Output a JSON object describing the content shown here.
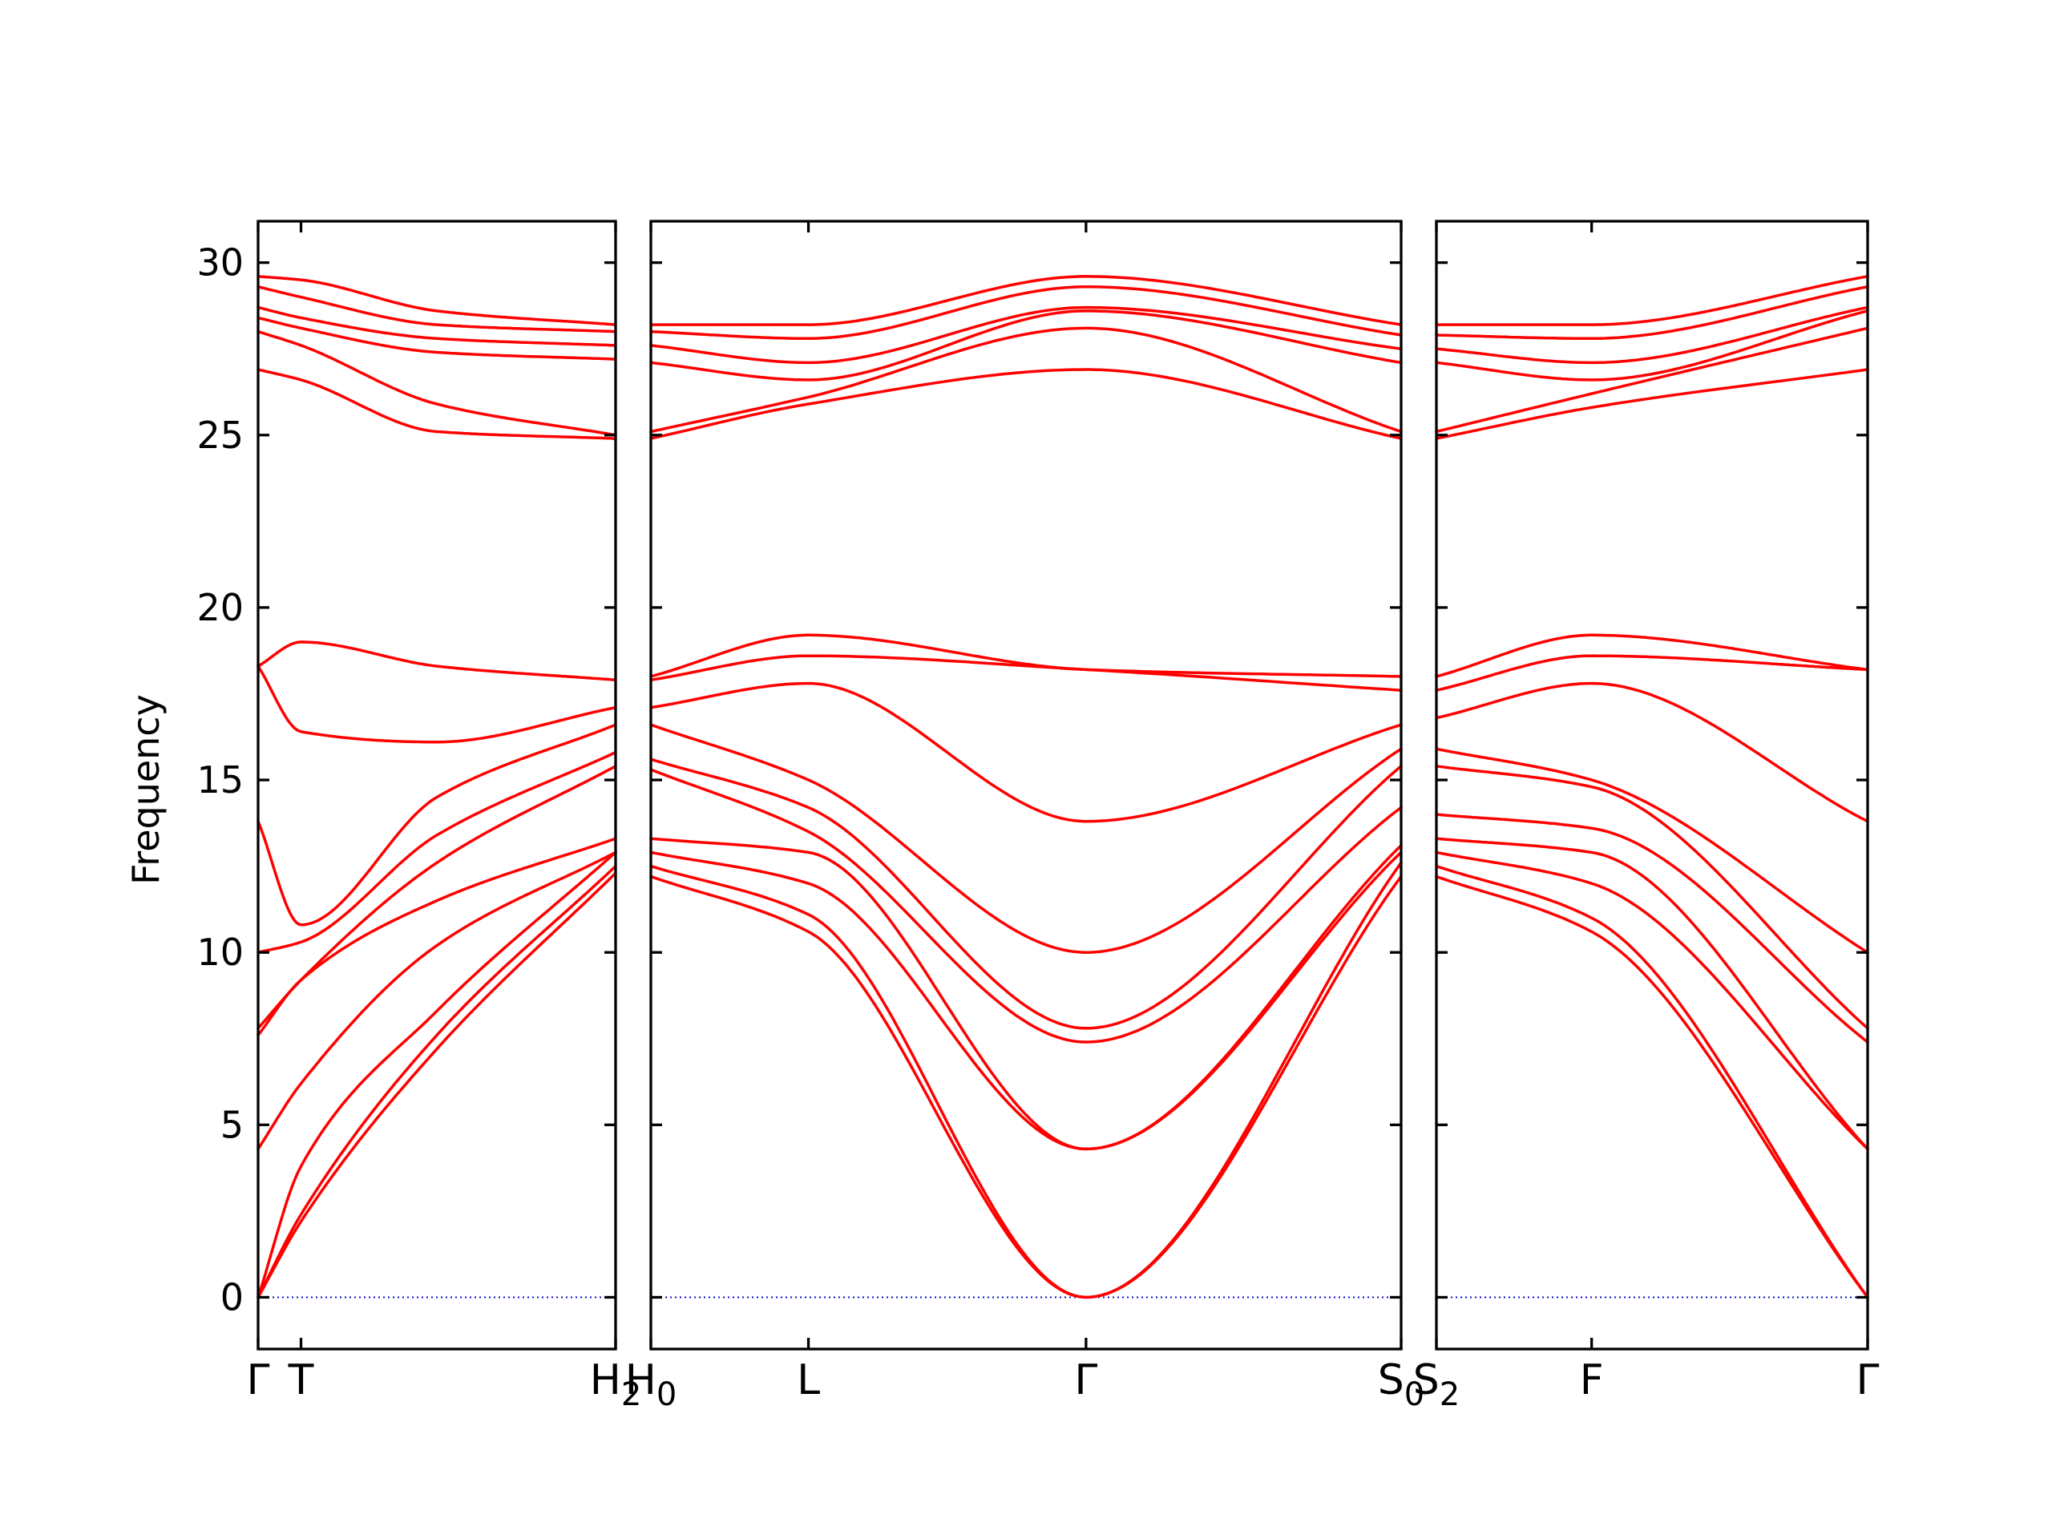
{
  "chart_data": {
    "type": "line",
    "ylabel": "Frequency",
    "ylim": [
      -1.5,
      31.2
    ],
    "yticks": [
      "0",
      "5",
      "10",
      "15",
      "20",
      "25",
      "30"
    ],
    "zero_line_color": "#0000cc",
    "band_color": "#ff0000",
    "panels": [
      {
        "xticks": [
          {
            "pos": 0.0,
            "main": "Γ",
            "sub": ""
          },
          {
            "pos": 0.12,
            "main": "T",
            "sub": ""
          },
          {
            "pos": 1.0,
            "main": "H",
            "sub": "2"
          }
        ],
        "bands": [
          {
            "x": [
              0,
              0.12,
              0.5,
              1.0
            ],
            "y": [
              0,
              2.2,
              7.2,
              12.3
            ]
          },
          {
            "x": [
              0,
              0.12,
              0.5,
              1.0
            ],
            "y": [
              0,
              2.4,
              7.6,
              12.5
            ]
          },
          {
            "x": [
              0,
              0.12,
              0.5,
              1.0
            ],
            "y": [
              0,
              3.8,
              8.3,
              12.9
            ]
          },
          {
            "x": [
              0,
              0.12,
              0.5,
              1.0
            ],
            "y": [
              4.3,
              6.2,
              10.2,
              12.9
            ]
          },
          {
            "x": [
              0,
              0.12,
              0.5,
              1.0
            ],
            "y": [
              7.6,
              9.2,
              11.5,
              13.3
            ]
          },
          {
            "x": [
              0,
              0.12,
              0.5,
              1.0
            ],
            "y": [
              7.8,
              9.2,
              12.6,
              15.4
            ]
          },
          {
            "x": [
              0,
              0.12,
              0.5,
              1.0
            ],
            "y": [
              10.0,
              10.3,
              13.4,
              15.8
            ]
          },
          {
            "x": [
              0,
              0.12,
              0.5,
              1.0
            ],
            "y": [
              13.8,
              10.8,
              14.5,
              16.6
            ]
          },
          {
            "x": [
              0,
              0.12,
              0.5,
              1.0
            ],
            "y": [
              18.3,
              16.4,
              16.1,
              17.1
            ]
          },
          {
            "x": [
              0,
              0.12,
              0.5,
              1.0
            ],
            "y": [
              18.3,
              19.0,
              18.3,
              17.9
            ]
          },
          {
            "x": [
              0,
              0.12,
              0.5,
              1.0
            ],
            "y": [
              26.9,
              26.6,
              25.1,
              24.9
            ]
          },
          {
            "x": [
              0,
              0.12,
              0.5,
              1.0
            ],
            "y": [
              28.0,
              27.6,
              25.9,
              25.0
            ]
          },
          {
            "x": [
              0,
              0.12,
              0.5,
              1.0
            ],
            "y": [
              28.4,
              28.1,
              27.4,
              27.2
            ]
          },
          {
            "x": [
              0,
              0.12,
              0.5,
              1.0
            ],
            "y": [
              28.7,
              28.4,
              27.8,
              27.6
            ]
          },
          {
            "x": [
              0,
              0.12,
              0.5,
              1.0
            ],
            "y": [
              29.3,
              29.0,
              28.2,
              28.0
            ]
          },
          {
            "x": [
              0,
              0.12,
              0.5,
              1.0
            ],
            "y": [
              29.6,
              29.5,
              28.6,
              28.2
            ]
          }
        ]
      },
      {
        "xticks": [
          {
            "pos": 0.0,
            "main": "H",
            "sub": "0"
          },
          {
            "pos": 0.21,
            "main": "L",
            "sub": ""
          },
          {
            "pos": 0.58,
            "main": "Γ",
            "sub": ""
          },
          {
            "pos": 1.0,
            "main": "S",
            "sub": "0"
          }
        ],
        "bands": [
          {
            "x": [
              0,
              0.21,
              0.58,
              1.0
            ],
            "y": [
              12.2,
              10.6,
              0,
              12.2
            ]
          },
          {
            "x": [
              0,
              0.21,
              0.58,
              1.0
            ],
            "y": [
              12.5,
              11.1,
              0,
              12.6
            ]
          },
          {
            "x": [
              0,
              0.21,
              0.58,
              1.0
            ],
            "y": [
              12.9,
              12.0,
              4.3,
              12.9
            ]
          },
          {
            "x": [
              0,
              0.21,
              0.58,
              1.0
            ],
            "y": [
              13.3,
              12.9,
              4.3,
              13.1
            ]
          },
          {
            "x": [
              0,
              0.21,
              0.58,
              1.0
            ],
            "y": [
              15.3,
              13.5,
              7.4,
              14.2
            ]
          },
          {
            "x": [
              0,
              0.21,
              0.58,
              1.0
            ],
            "y": [
              15.6,
              14.2,
              7.8,
              15.4
            ]
          },
          {
            "x": [
              0,
              0.21,
              0.58,
              1.0
            ],
            "y": [
              16.6,
              15.0,
              10.0,
              15.9
            ]
          },
          {
            "x": [
              0,
              0.21,
              0.58,
              1.0
            ],
            "y": [
              17.1,
              17.8,
              13.8,
              16.6
            ]
          },
          {
            "x": [
              0,
              0.21,
              0.58,
              1.0
            ],
            "y": [
              17.9,
              18.6,
              18.2,
              17.6
            ]
          },
          {
            "x": [
              0,
              0.21,
              0.58,
              1.0
            ],
            "y": [
              18.0,
              19.2,
              18.2,
              18.0
            ]
          },
          {
            "x": [
              0,
              0.21,
              0.58,
              1.0
            ],
            "y": [
              24.9,
              25.9,
              26.9,
              24.9
            ]
          },
          {
            "x": [
              0,
              0.21,
              0.58,
              1.0
            ],
            "y": [
              25.1,
              26.1,
              28.1,
              25.1
            ]
          },
          {
            "x": [
              0,
              0.21,
              0.58,
              1.0
            ],
            "y": [
              27.1,
              26.6,
              28.6,
              27.1
            ]
          },
          {
            "x": [
              0,
              0.21,
              0.58,
              1.0
            ],
            "y": [
              27.6,
              27.1,
              28.7,
              27.5
            ]
          },
          {
            "x": [
              0,
              0.21,
              0.58,
              1.0
            ],
            "y": [
              28.0,
              27.8,
              29.3,
              27.9
            ]
          },
          {
            "x": [
              0,
              0.21,
              0.58,
              1.0
            ],
            "y": [
              28.2,
              28.2,
              29.6,
              28.2
            ]
          }
        ]
      },
      {
        "xticks": [
          {
            "pos": 0.0,
            "main": "S",
            "sub": "2"
          },
          {
            "pos": 0.36,
            "main": "F",
            "sub": ""
          },
          {
            "pos": 1.0,
            "main": "Γ",
            "sub": ""
          }
        ],
        "bands": [
          {
            "x": [
              0,
              0.36,
              1.0
            ],
            "y": [
              12.2,
              10.6,
              0
            ]
          },
          {
            "x": [
              0,
              0.36,
              1.0
            ],
            "y": [
              12.5,
              11.0,
              0
            ]
          },
          {
            "x": [
              0,
              0.36,
              1.0
            ],
            "y": [
              12.9,
              12.0,
              4.3
            ]
          },
          {
            "x": [
              0,
              0.36,
              1.0
            ],
            "y": [
              13.3,
              12.9,
              4.3
            ]
          },
          {
            "x": [
              0,
              0.36,
              1.0
            ],
            "y": [
              14.0,
              13.6,
              7.4
            ]
          },
          {
            "x": [
              0,
              0.36,
              1.0
            ],
            "y": [
              15.4,
              14.8,
              7.8
            ]
          },
          {
            "x": [
              0,
              0.36,
              1.0
            ],
            "y": [
              15.9,
              15.0,
              10.0
            ]
          },
          {
            "x": [
              0,
              0.36,
              1.0
            ],
            "y": [
              16.8,
              17.8,
              13.8
            ]
          },
          {
            "x": [
              0,
              0.36,
              1.0
            ],
            "y": [
              17.6,
              18.6,
              18.2
            ]
          },
          {
            "x": [
              0,
              0.36,
              1.0
            ],
            "y": [
              18.0,
              19.2,
              18.2
            ]
          },
          {
            "x": [
              0,
              0.36,
              1.0
            ],
            "y": [
              24.9,
              25.8,
              26.9
            ]
          },
          {
            "x": [
              0,
              0.36,
              1.0
            ],
            "y": [
              25.1,
              26.2,
              28.1
            ]
          },
          {
            "x": [
              0,
              0.36,
              1.0
            ],
            "y": [
              27.1,
              26.6,
              28.6
            ]
          },
          {
            "x": [
              0,
              0.36,
              1.0
            ],
            "y": [
              27.5,
              27.1,
              28.7
            ]
          },
          {
            "x": [
              0,
              0.36,
              1.0
            ],
            "y": [
              27.9,
              27.8,
              29.3
            ]
          },
          {
            "x": [
              0,
              0.36,
              1.0
            ],
            "y": [
              28.2,
              28.2,
              29.6
            ]
          }
        ]
      }
    ]
  }
}
